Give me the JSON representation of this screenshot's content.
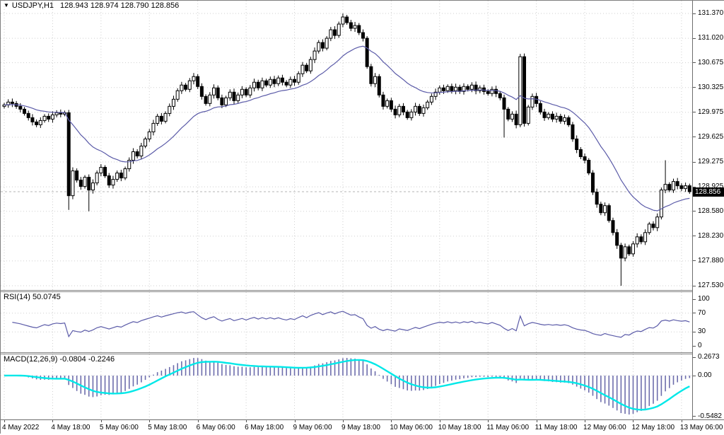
{
  "header": {
    "symbol": "USDJPY,H1",
    "ohlc": "128.943 128.974 128.790 128.856"
  },
  "icons": {
    "triangle_down": "▼"
  },
  "price_axis": {
    "labels": [
      "131.370",
      "131.020",
      "130.675",
      "130.325",
      "129.975",
      "129.625",
      "129.275",
      "128.925",
      "128.580",
      "128.230",
      "127.880",
      "127.530"
    ],
    "current_price": "128.856"
  },
  "rsi_header": {
    "label": "RSI(14)",
    "value": "50.0745"
  },
  "macd_header": {
    "label": "MACD(12,26,9)",
    "values": "-0.0804 -0.2246"
  },
  "rsi_axis": {
    "ticks": [
      "100",
      "70",
      "30",
      "0"
    ],
    "grid_levels": [
      70,
      30
    ]
  },
  "macd_axis": {
    "ticks": [
      "0.2673",
      "0.00",
      "-0.5482"
    ]
  },
  "colors": {
    "ma_line": "#5b5ba8",
    "rsi_line": "#5b5ba8",
    "macd_hist": "#6d6dac",
    "macd_signal": "#00e8e8",
    "bull_body": "#ffffff",
    "bear_body": "#000000",
    "candle_outline": "#000000",
    "grid": "#cfcfcf",
    "bid_line": "#b5b5b5",
    "badge_bg": "#000000",
    "badge_text": "#ffffff"
  },
  "chart_data": {
    "type": "candlestick",
    "symbol": "USDJPY",
    "timeframe": "H1",
    "title": "USDJPY,H1",
    "last_bar": {
      "open": 128.943,
      "high": 128.974,
      "low": 128.79,
      "close": 128.856
    },
    "y_ticks": [
      131.37,
      131.02,
      130.675,
      130.325,
      129.975,
      129.625,
      129.275,
      128.925,
      128.58,
      128.23,
      127.88,
      127.53
    ],
    "x_labels": [
      "4 May 2022",
      "4 May 18:00",
      "5 May 06:00",
      "5 May 18:00",
      "6 May 06:00",
      "6 May 18:00",
      "9 May 06:00",
      "9 May 18:00",
      "10 May 06:00",
      "10 May 18:00",
      "11 May 06:00",
      "11 May 18:00",
      "12 May 06:00",
      "12 May 18:00",
      "13 May 06:00"
    ],
    "bars_per_label": 12,
    "closes": [
      130.08,
      130.12,
      130.1,
      130.06,
      130.02,
      129.96,
      129.9,
      129.84,
      129.8,
      129.86,
      129.92,
      129.88,
      129.94,
      129.97,
      129.95,
      129.97,
      128.8,
      129.15,
      129.02,
      128.93,
      129.06,
      128.88,
      128.98,
      129.12,
      129.2,
      129.08,
      128.95,
      129.03,
      129.12,
      129.05,
      129.18,
      129.3,
      129.42,
      129.36,
      129.5,
      129.6,
      129.7,
      129.82,
      129.92,
      129.85,
      129.96,
      130.06,
      130.16,
      130.28,
      130.36,
      130.3,
      130.42,
      130.48,
      130.34,
      130.2,
      130.1,
      130.22,
      130.32,
      130.18,
      130.08,
      130.18,
      130.26,
      130.14,
      130.22,
      130.3,
      130.22,
      130.32,
      130.4,
      130.32,
      130.42,
      130.36,
      130.44,
      130.38,
      130.46,
      130.4,
      130.36,
      130.44,
      130.4,
      130.52,
      130.64,
      130.56,
      130.72,
      130.84,
      130.96,
      130.88,
      131.02,
      131.14,
      131.06,
      131.22,
      131.32,
      131.24,
      131.16,
      131.2,
      131.1,
      131.02,
      130.62,
      130.38,
      130.48,
      130.22,
      130.06,
      130.14,
      130.02,
      129.94,
      130.06,
      129.98,
      129.9,
      129.98,
      130.06,
      129.96,
      130.04,
      130.12,
      130.2,
      130.26,
      130.32,
      130.28,
      130.34,
      130.28,
      130.33,
      130.27,
      130.34,
      130.3,
      130.36,
      130.28,
      130.32,
      130.27,
      130.24,
      130.3,
      130.24,
      130.18,
      130.02,
      129.88,
      129.95,
      129.8,
      130.76,
      129.82,
      130.05,
      130.2,
      130.1,
      129.98,
      129.9,
      129.95,
      129.88,
      129.92,
      129.85,
      129.9,
      129.8,
      129.6,
      129.45,
      129.35,
      129.3,
      129.12,
      128.85,
      128.68,
      128.56,
      128.66,
      128.45,
      128.28,
      128.1,
      127.92,
      128.08,
      127.98,
      128.12,
      128.22,
      128.15,
      128.28,
      128.4,
      128.35,
      128.5,
      128.88,
      128.96,
      128.88,
      129.0,
      128.94,
      128.9,
      128.94,
      128.856
    ],
    "default_wick": 0.03,
    "wick_overrides": {
      "16": {
        "low": 128.6
      },
      "21": {
        "low": 128.58
      },
      "84": {
        "high": 131.37
      },
      "124": {
        "low": 129.62
      },
      "128": {
        "high": 130.8
      },
      "153": {
        "low": 127.53
      },
      "164": {
        "high": 129.3
      }
    },
    "indicators": {
      "ma_line": {
        "visible": true
      },
      "rsi": {
        "label": "RSI(14)",
        "current": 50.0745,
        "range": [
          0,
          100
        ],
        "ticks": [
          100,
          70,
          30,
          0
        ]
      },
      "macd": {
        "label": "MACD(12,26,9)",
        "current_macd": -0.0804,
        "current_signal": -0.2246,
        "ticks": [
          0.2673,
          0.0,
          -0.5482
        ]
      }
    },
    "current_price": 128.856,
    "legend_position": "none",
    "grid": true
  }
}
